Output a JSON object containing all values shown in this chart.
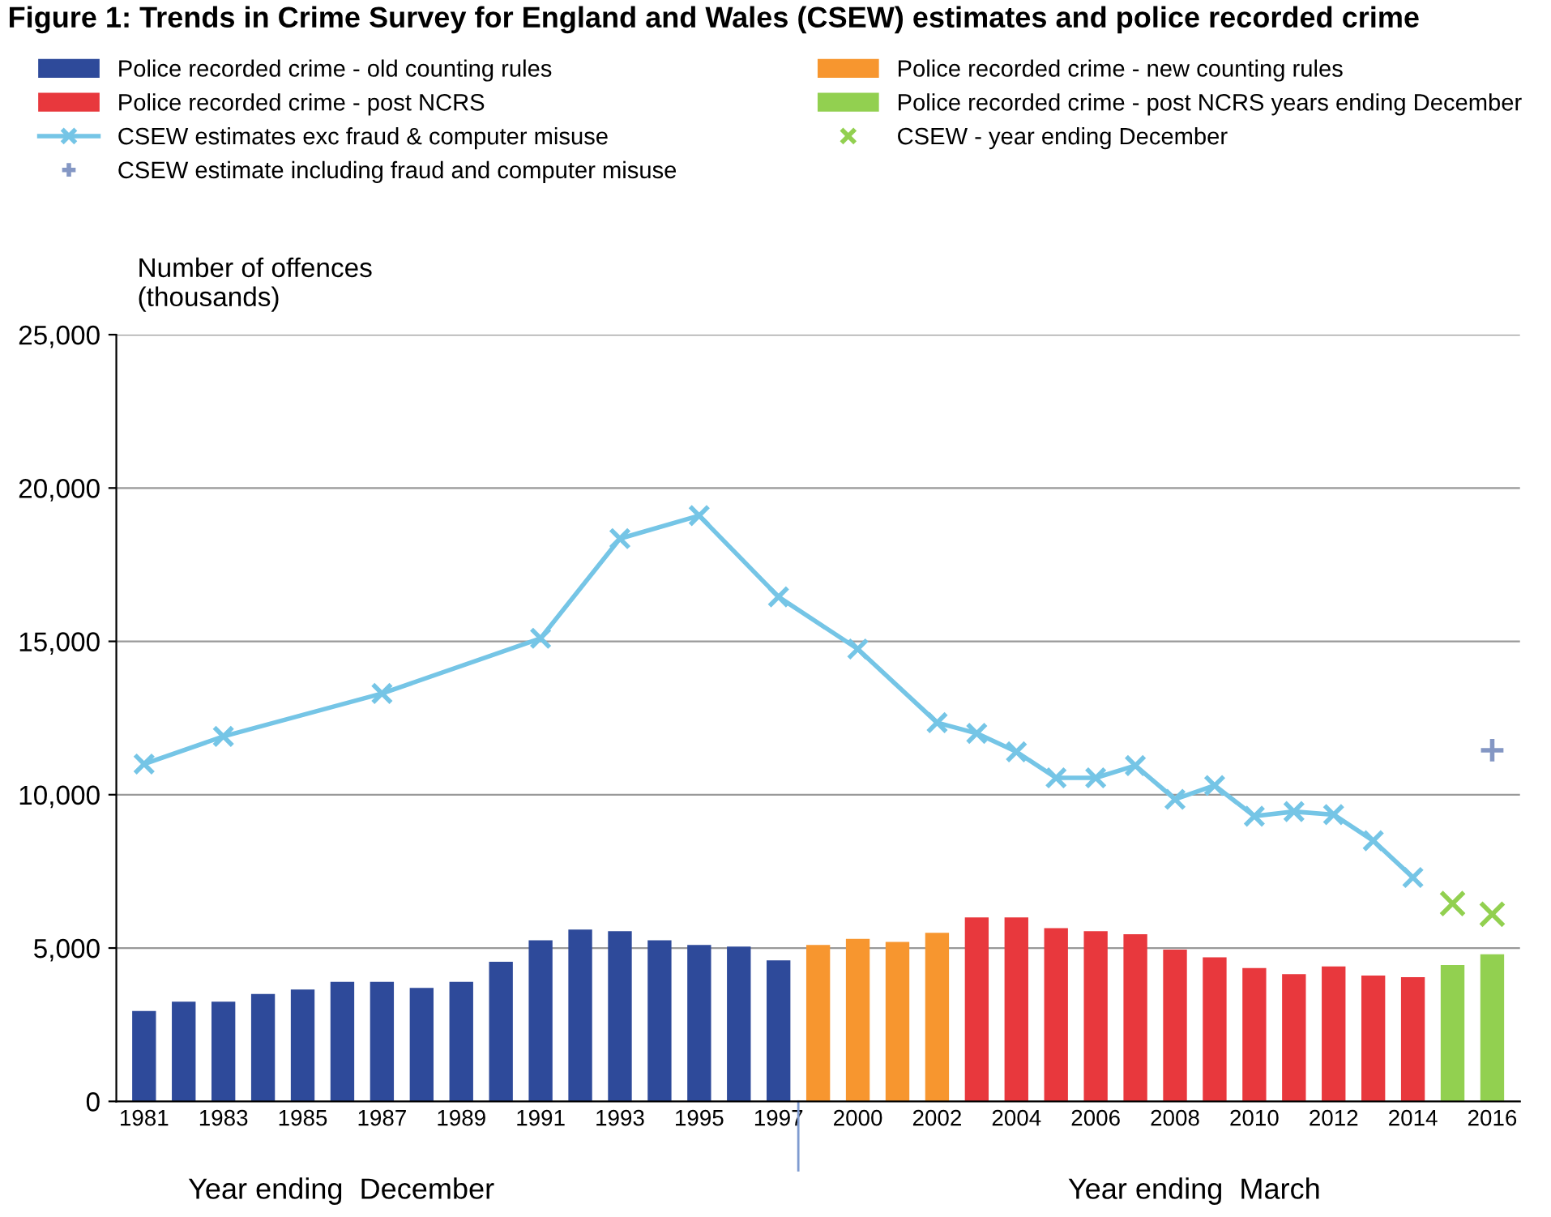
{
  "chart_data": {
    "type": "bar",
    "title": "Figure 1: Trends in Crime Survey for England and Wales (CSEW) estimates and police recorded crime",
    "ylabel": "Number of offences\n(thousands)",
    "categories": [
      "1981",
      null,
      "1983",
      null,
      "1985",
      null,
      "1987",
      null,
      "1989",
      null,
      "1991",
      null,
      "1993",
      null,
      "1995",
      null,
      "1997",
      null,
      "2000",
      null,
      "2002",
      null,
      "2004",
      null,
      "2006",
      null,
      "2008",
      null,
      "2010",
      null,
      "2012",
      null,
      "2014",
      null,
      "2016"
    ],
    "series": [
      {
        "name": "Police recorded crime - old counting rules",
        "color": "#2e4a9a",
        "values": [
          2950,
          3250,
          3250,
          3500,
          3650,
          3900,
          3900,
          3700,
          3900,
          4550,
          5250,
          5600,
          5550,
          5250,
          5100,
          5050,
          4600,
          null,
          null,
          null,
          null,
          null,
          null,
          null,
          null,
          null,
          null,
          null,
          null,
          null,
          null,
          null,
          null,
          null,
          null
        ]
      },
      {
        "name": "Police recorded crime - new counting rules",
        "color": "#f7962f",
        "values": [
          null,
          null,
          null,
          null,
          null,
          null,
          null,
          null,
          null,
          null,
          null,
          null,
          null,
          null,
          null,
          null,
          null,
          5100,
          5300,
          5200,
          5500,
          null,
          null,
          null,
          null,
          null,
          null,
          null,
          null,
          null,
          null,
          null,
          null,
          null,
          null
        ]
      },
      {
        "name": "Police recorded crime - post NCRS",
        "color": "#e8383d",
        "values": [
          null,
          null,
          null,
          null,
          null,
          null,
          null,
          null,
          null,
          null,
          null,
          null,
          null,
          null,
          null,
          null,
          null,
          null,
          null,
          null,
          null,
          6000,
          6000,
          5650,
          5550,
          5450,
          4950,
          4700,
          4350,
          4150,
          4400,
          4100,
          4050,
          null,
          null
        ]
      },
      {
        "name": "Police recorded crime - post NCRS years ending December",
        "color": "#92d050",
        "values": [
          null,
          null,
          null,
          null,
          null,
          null,
          null,
          null,
          null,
          null,
          null,
          null,
          null,
          null,
          null,
          null,
          null,
          null,
          null,
          null,
          null,
          null,
          null,
          null,
          null,
          null,
          null,
          null,
          null,
          null,
          null,
          null,
          null,
          4450,
          4800
        ]
      },
      {
        "name": "CSEW estimates exc fraud & computer misuse",
        "type": "line",
        "color": "#75c5e6",
        "marker": "cross",
        "values": [
          11000,
          null,
          11900,
          null,
          null,
          null,
          13300,
          null,
          null,
          null,
          15100,
          null,
          18350,
          null,
          19100,
          null,
          16450,
          null,
          14750,
          null,
          12350,
          12000,
          11400,
          10550,
          10550,
          10950,
          9850,
          10300,
          9300,
          9450,
          9350,
          8500,
          7300,
          null,
          null
        ]
      },
      {
        "name": "CSEW - year ending December",
        "type": "scatter",
        "color": "#92d050",
        "marker": "cross",
        "values": [
          null,
          null,
          null,
          null,
          null,
          null,
          null,
          null,
          null,
          null,
          null,
          null,
          null,
          null,
          null,
          null,
          null,
          null,
          null,
          null,
          null,
          null,
          null,
          null,
          null,
          null,
          null,
          null,
          null,
          null,
          null,
          null,
          null,
          6450,
          6100
        ]
      },
      {
        "name": "CSEW estimate including fraud and computer misuse",
        "type": "scatter",
        "color": "#8497c4",
        "marker": "plus",
        "values": [
          null,
          null,
          null,
          null,
          null,
          null,
          null,
          null,
          null,
          null,
          null,
          null,
          null,
          null,
          null,
          null,
          null,
          null,
          null,
          null,
          null,
          null,
          null,
          null,
          null,
          null,
          null,
          null,
          null,
          null,
          null,
          null,
          null,
          null,
          11450
        ]
      }
    ],
    "ylim": [
      0,
      25000
    ],
    "yticks": [
      {
        "value": 0,
        "label": "0"
      },
      {
        "value": 5000,
        "label": "5,000"
      },
      {
        "value": 10000,
        "label": "10,000"
      },
      {
        "value": 15000,
        "label": "15,000"
      },
      {
        "value": 20000,
        "label": "20,000"
      },
      {
        "value": 25000,
        "label": "25,000"
      }
    ],
    "grid": "y",
    "legend": "top",
    "annotations": [
      "Year ending  December",
      "Year ending  March"
    ]
  }
}
